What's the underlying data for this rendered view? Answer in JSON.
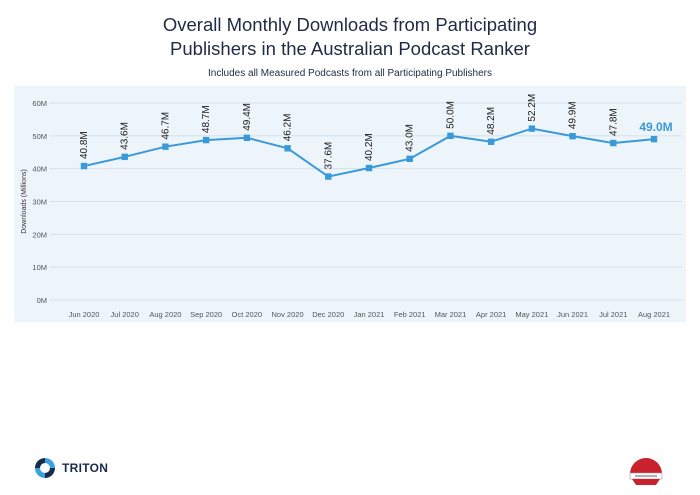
{
  "header": {
    "title_line1": "Overall Monthly Downloads from Participating",
    "title_line2": "Publishers in the Australian Podcast Ranker",
    "subtitle": "Includes all Measured Podcasts from all Participating Publishers"
  },
  "chart_data": {
    "type": "line",
    "title": "Overall Monthly Downloads from Participating Publishers in the Australian Podcast Ranker",
    "subtitle": "Includes all Measured Podcasts from all Participating Publishers",
    "ylabel": "Downloads (Millions)",
    "xlabel": "",
    "ylim": [
      0,
      60
    ],
    "yticks": [
      0,
      10,
      20,
      30,
      40,
      50,
      60
    ],
    "ytick_labels": [
      "0M",
      "10M",
      "20M",
      "30M",
      "40M",
      "50M",
      "60M"
    ],
    "grid": true,
    "categories": [
      "Jun 2020",
      "Jul 2020",
      "Aug 2020",
      "Sep 2020",
      "Oct 2020",
      "Nov 2020",
      "Dec 2020",
      "Jan 2021",
      "Feb 2021",
      "Mar 2021",
      "Apr 2021",
      "May 2021",
      "Jun 2021",
      "Jul 2021",
      "Aug 2021"
    ],
    "values": [
      40.8,
      43.6,
      46.7,
      48.7,
      49.4,
      46.2,
      37.6,
      40.2,
      43.0,
      50.0,
      48.2,
      52.2,
      49.9,
      47.8,
      49.0
    ],
    "data_labels": [
      "40.8M",
      "43.6M",
      "46.7M",
      "48.7M",
      "49.4M",
      "46.2M",
      "37.6M",
      "40.2M",
      "43.0M",
      "50.0M",
      "48.2M",
      "52.2M",
      "49.9M",
      "47.8M",
      "49.0M"
    ],
    "colors": {
      "line": "#3a9ad9",
      "plot_bg": "#eef5fa",
      "highlight_label": "#3a9ad9"
    }
  },
  "footer": {
    "logo_text": "TRITON",
    "logo_icon": "triton-logo-icon",
    "badge_icon": "certification-seal-icon"
  }
}
